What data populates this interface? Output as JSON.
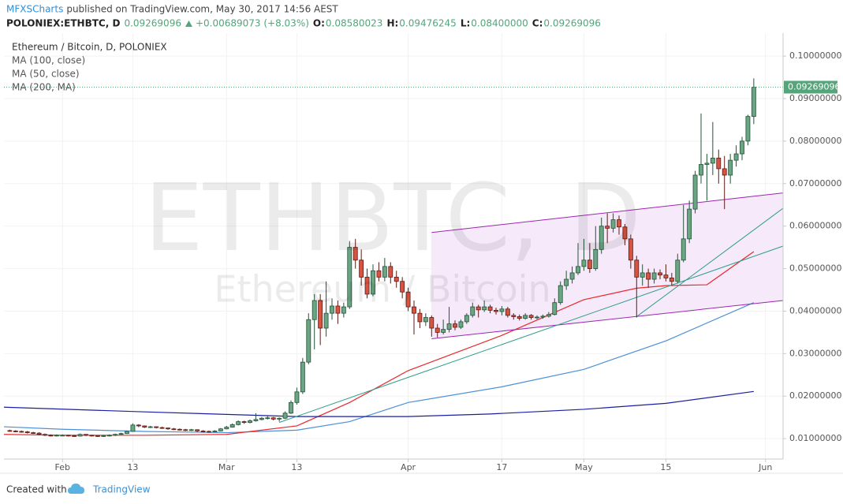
{
  "header": {
    "author": "MFXSCharts",
    "published": "published on TradingView.com, May 30, 2017 14:56 AEST",
    "symbol": "POLONIEX:ETHBTC, D",
    "price": "0.09269096",
    "change": "+0.00689073 (+8.03%)",
    "ohlc": [
      {
        "label": "O:",
        "value": "0.08580023"
      },
      {
        "label": "H:",
        "value": "0.09476245"
      },
      {
        "label": "L:",
        "value": "0.08400000"
      },
      {
        "label": "C:",
        "value": "0.09269096"
      }
    ]
  },
  "watermark": {
    "symbol": "ETHBTC, D",
    "name": "Ethereum / Bitcoin"
  },
  "footer": {
    "text": "Created with",
    "brand": "TradingView"
  },
  "chart_data": {
    "type": "candlestick",
    "title": "Ethereum / Bitcoin, D, POLONIEX",
    "up_color": "#6ba583",
    "down_color": "#d75442",
    "up_border": "#225437",
    "down_border": "#5b1a13",
    "x": [
      "01-23",
      "01-24",
      "01-25",
      "01-26",
      "01-27",
      "01-28",
      "01-29",
      "01-30",
      "01-31",
      "02-01",
      "02-02",
      "02-03",
      "02-04",
      "02-05",
      "02-06",
      "02-07",
      "02-08",
      "02-09",
      "02-10",
      "02-11",
      "02-12",
      "02-13",
      "02-14",
      "02-15",
      "02-16",
      "02-17",
      "02-18",
      "02-19",
      "02-20",
      "02-21",
      "02-22",
      "02-23",
      "02-24",
      "02-25",
      "02-26",
      "02-27",
      "02-28",
      "03-01",
      "03-02",
      "03-03",
      "03-04",
      "03-05",
      "03-06",
      "03-07",
      "03-08",
      "03-09",
      "03-10",
      "03-11",
      "03-12",
      "03-13",
      "03-14",
      "03-15",
      "03-16",
      "03-17",
      "03-18",
      "03-19",
      "03-20",
      "03-21",
      "03-22",
      "03-23",
      "03-24",
      "03-25",
      "03-26",
      "03-27",
      "03-28",
      "03-29",
      "03-30",
      "03-31",
      "04-01",
      "04-02",
      "04-03",
      "04-04",
      "04-05",
      "04-06",
      "04-07",
      "04-08",
      "04-09",
      "04-10",
      "04-11",
      "04-12",
      "04-13",
      "04-14",
      "04-15",
      "04-16",
      "04-17",
      "04-18",
      "04-19",
      "04-20",
      "04-21",
      "04-22",
      "04-23",
      "04-24",
      "04-25",
      "04-26",
      "04-27",
      "04-28",
      "04-29",
      "04-30",
      "05-01",
      "05-02",
      "05-03",
      "05-04",
      "05-05",
      "05-06",
      "05-07",
      "05-08",
      "05-09",
      "05-10",
      "05-11",
      "05-12",
      "05-13",
      "05-14",
      "05-15",
      "05-16",
      "05-17",
      "05-18",
      "05-19",
      "05-20",
      "05-21",
      "05-22",
      "05-23",
      "05-24",
      "05-25",
      "05-26",
      "05-27",
      "05-28",
      "05-29",
      "05-30"
    ],
    "open": [
      0.0119,
      0.0118,
      0.0117,
      0.0116,
      0.0114,
      0.0113,
      0.011,
      0.0108,
      0.0107,
      0.0108,
      0.0108,
      0.0107,
      0.0106,
      0.011,
      0.0108,
      0.0107,
      0.0106,
      0.0107,
      0.0108,
      0.011,
      0.0112,
      0.0117,
      0.0132,
      0.013,
      0.0127,
      0.0128,
      0.0126,
      0.0125,
      0.0123,
      0.0122,
      0.0121,
      0.012,
      0.0121,
      0.0118,
      0.0117,
      0.0116,
      0.0118,
      0.0123,
      0.0127,
      0.0133,
      0.014,
      0.0138,
      0.0142,
      0.0145,
      0.0148,
      0.0149,
      0.0146,
      0.0148,
      0.016,
      0.0185,
      0.021,
      0.028,
      0.038,
      0.0425,
      0.036,
      0.0395,
      0.0412,
      0.0395,
      0.041,
      0.055,
      0.052,
      0.048,
      0.044,
      0.0495,
      0.048,
      0.0505,
      0.048,
      0.047,
      0.0445,
      0.041,
      0.0395,
      0.0375,
      0.0385,
      0.036,
      0.035,
      0.0357,
      0.037,
      0.0362,
      0.0375,
      0.039,
      0.041,
      0.0403,
      0.041,
      0.0402,
      0.0399,
      0.0405,
      0.039,
      0.0387,
      0.0383,
      0.039,
      0.0385,
      0.0386,
      0.0388,
      0.0392,
      0.042,
      0.046,
      0.0475,
      0.049,
      0.0505,
      0.052,
      0.05,
      0.0545,
      0.06,
      0.0595,
      0.0615,
      0.0598,
      0.057,
      0.052,
      0.048,
      0.049,
      0.0475,
      0.049,
      0.0485,
      0.0478,
      0.047,
      0.052,
      0.057,
      0.064,
      0.072,
      0.0745,
      0.0748,
      0.076,
      0.0735,
      0.072,
      0.0755,
      0.077,
      0.08,
      0.08580023
    ],
    "high": [
      0.0121,
      0.012,
      0.0119,
      0.0118,
      0.0116,
      0.0115,
      0.0112,
      0.011,
      0.011,
      0.011,
      0.0109,
      0.0109,
      0.0112,
      0.0111,
      0.0109,
      0.0108,
      0.0109,
      0.011,
      0.0112,
      0.0114,
      0.0119,
      0.0136,
      0.0134,
      0.0131,
      0.013,
      0.0129,
      0.0128,
      0.0126,
      0.0125,
      0.0124,
      0.0123,
      0.0123,
      0.0122,
      0.012,
      0.0119,
      0.012,
      0.0125,
      0.013,
      0.0136,
      0.0143,
      0.0142,
      0.0145,
      0.016,
      0.0151,
      0.0153,
      0.0151,
      0.015,
      0.0164,
      0.019,
      0.022,
      0.029,
      0.0395,
      0.044,
      0.044,
      0.047,
      0.043,
      0.0425,
      0.042,
      0.0565,
      0.057,
      0.0545,
      0.05,
      0.051,
      0.0515,
      0.0525,
      0.0515,
      0.0495,
      0.048,
      0.0455,
      0.0425,
      0.0405,
      0.0395,
      0.039,
      0.037,
      0.038,
      0.041,
      0.0378,
      0.038,
      0.0395,
      0.042,
      0.0415,
      0.0425,
      0.0415,
      0.0408,
      0.0412,
      0.041,
      0.0395,
      0.0392,
      0.0395,
      0.0393,
      0.039,
      0.0392,
      0.0398,
      0.043,
      0.047,
      0.0495,
      0.0505,
      0.056,
      0.057,
      0.056,
      0.06,
      0.062,
      0.063,
      0.063,
      0.0625,
      0.0605,
      0.058,
      0.053,
      0.051,
      0.05,
      0.05,
      0.0498,
      0.051,
      0.049,
      0.0535,
      0.065,
      0.066,
      0.073,
      0.0865,
      0.077,
      0.0845,
      0.078,
      0.0765,
      0.077,
      0.079,
      0.081,
      0.0862,
      0.09476245
    ],
    "low": [
      0.0116,
      0.0115,
      0.0114,
      0.0112,
      0.0111,
      0.0108,
      0.0106,
      0.0105,
      0.0105,
      0.0106,
      0.0105,
      0.0104,
      0.0105,
      0.0106,
      0.0105,
      0.0104,
      0.0104,
      0.0105,
      0.0106,
      0.0109,
      0.0111,
      0.0116,
      0.0127,
      0.0125,
      0.0125,
      0.0124,
      0.0123,
      0.0121,
      0.012,
      0.0119,
      0.0118,
      0.0118,
      0.0116,
      0.0115,
      0.0114,
      0.0115,
      0.0117,
      0.0122,
      0.0126,
      0.0131,
      0.0135,
      0.0136,
      0.014,
      0.0143,
      0.0145,
      0.0143,
      0.014,
      0.0146,
      0.0158,
      0.018,
      0.0205,
      0.0275,
      0.031,
      0.032,
      0.034,
      0.038,
      0.037,
      0.0385,
      0.0405,
      0.05,
      0.046,
      0.043,
      0.0435,
      0.047,
      0.047,
      0.0465,
      0.0455,
      0.043,
      0.04,
      0.0345,
      0.036,
      0.0365,
      0.034,
      0.0338,
      0.0345,
      0.035,
      0.0355,
      0.0358,
      0.037,
      0.0385,
      0.0385,
      0.0398,
      0.0395,
      0.0392,
      0.039,
      0.0385,
      0.038,
      0.0378,
      0.038,
      0.038,
      0.0381,
      0.0382,
      0.0385,
      0.039,
      0.0415,
      0.045,
      0.0465,
      0.0485,
      0.0495,
      0.049,
      0.0495,
      0.0535,
      0.056,
      0.0585,
      0.058,
      0.0555,
      0.05,
      0.0385,
      0.046,
      0.0455,
      0.0465,
      0.0475,
      0.047,
      0.046,
      0.0465,
      0.0515,
      0.056,
      0.063,
      0.07,
      0.066,
      0.072,
      0.07,
      0.064,
      0.07,
      0.074,
      0.0755,
      0.079,
      0.084
    ],
    "close": [
      0.0118,
      0.0117,
      0.0116,
      0.0114,
      0.0113,
      0.011,
      0.0108,
      0.0107,
      0.0108,
      0.0108,
      0.0107,
      0.0106,
      0.011,
      0.0108,
      0.0107,
      0.0106,
      0.0107,
      0.0108,
      0.011,
      0.0112,
      0.0117,
      0.0132,
      0.013,
      0.0127,
      0.0128,
      0.0126,
      0.0125,
      0.0123,
      0.0122,
      0.0121,
      0.012,
      0.0121,
      0.0118,
      0.0117,
      0.0116,
      0.0118,
      0.0123,
      0.0127,
      0.0133,
      0.014,
      0.0138,
      0.0142,
      0.0145,
      0.0148,
      0.0149,
      0.0146,
      0.0148,
      0.016,
      0.0185,
      0.021,
      0.028,
      0.038,
      0.0425,
      0.036,
      0.0395,
      0.0412,
      0.0395,
      0.041,
      0.055,
      0.052,
      0.048,
      0.044,
      0.0495,
      0.048,
      0.0505,
      0.048,
      0.047,
      0.0445,
      0.041,
      0.0395,
      0.0375,
      0.0385,
      0.036,
      0.035,
      0.0357,
      0.037,
      0.0362,
      0.0375,
      0.039,
      0.041,
      0.0403,
      0.041,
      0.0402,
      0.0399,
      0.0405,
      0.039,
      0.0387,
      0.0383,
      0.039,
      0.0385,
      0.0386,
      0.0388,
      0.0392,
      0.042,
      0.046,
      0.0475,
      0.049,
      0.0505,
      0.052,
      0.05,
      0.0545,
      0.06,
      0.0595,
      0.0615,
      0.0598,
      0.057,
      0.052,
      0.048,
      0.049,
      0.0475,
      0.049,
      0.0485,
      0.0478,
      0.047,
      0.052,
      0.057,
      0.064,
      0.072,
      0.0745,
      0.0748,
      0.076,
      0.0735,
      0.072,
      0.0755,
      0.077,
      0.08,
      0.0858,
      0.09269096
    ],
    "ma_series": [
      {
        "name": "MA (100, close)",
        "color": "#4a90d9",
        "x": [
          "01-22",
          "02-01",
          "02-15",
          "03-01",
          "03-13",
          "03-22",
          "04-01",
          "04-17",
          "05-01",
          "05-15",
          "05-30"
        ],
        "values": [
          0.0128,
          0.0122,
          0.0117,
          0.0114,
          0.012,
          0.014,
          0.0185,
          0.0222,
          0.0263,
          0.033,
          0.042
        ]
      },
      {
        "name": "MA (50, close)",
        "color": "#e8282b",
        "x": [
          "01-22",
          "02-01",
          "02-15",
          "03-01",
          "03-13",
          "03-22",
          "04-01",
          "04-17",
          "05-01",
          "05-10",
          "05-15",
          "05-22",
          "05-30"
        ],
        "values": [
          0.011,
          0.0108,
          0.0108,
          0.011,
          0.013,
          0.0185,
          0.026,
          0.0343,
          0.0427,
          0.0454,
          0.046,
          0.0462,
          0.054
        ]
      },
      {
        "name": "MA (200, MA)",
        "color": "#1a1fa0",
        "x": [
          "01-22",
          "02-15",
          "03-13",
          "04-01",
          "04-15",
          "05-01",
          "05-15",
          "05-30"
        ],
        "values": [
          0.0174,
          0.0163,
          0.0152,
          0.0152,
          0.0158,
          0.0169,
          0.0183,
          0.0211
        ]
      }
    ],
    "drawings": [
      {
        "x": [
          "04-05",
          "06-04"
        ],
        "y": [
          0.0585,
          0.0678
        ],
        "color": "#9c27b0"
      },
      {
        "x": [
          "04-05",
          "06-04"
        ],
        "y": [
          0.0335,
          0.0425
        ],
        "color": "#9c27b0"
      },
      {
        "x": [
          "03-10",
          "06-04"
        ],
        "y": [
          0.0138,
          0.0553
        ],
        "color": "#2e9e8a"
      },
      {
        "x": [
          "05-10",
          "06-04"
        ],
        "y": [
          0.0387,
          0.0642
        ],
        "color": "#2e9e8a"
      }
    ],
    "channel_fill": "#f6eafa",
    "price_color": "#53a57a",
    "xlim": [
      "01-22",
      "06-04"
    ],
    "xticks": [
      {
        "value": "02-01",
        "label": "Feb"
      },
      {
        "value": "02-13",
        "label": "13"
      },
      {
        "value": "03-01",
        "label": "Mar"
      },
      {
        "value": "03-13",
        "label": "13"
      },
      {
        "value": "04-01",
        "label": "Apr"
      },
      {
        "value": "04-17",
        "label": "17"
      },
      {
        "value": "05-01",
        "label": "May"
      },
      {
        "value": "05-15",
        "label": "15"
      },
      {
        "value": "06-01",
        "label": "Jun"
      }
    ],
    "ylim": [
      0.0052,
      0.1054
    ],
    "yticks": [
      {
        "value": 0.01,
        "label": "0.01000000"
      },
      {
        "value": 0.02,
        "label": "0.02000000"
      },
      {
        "value": 0.03,
        "label": "0.03000000"
      },
      {
        "value": 0.04,
        "label": "0.04000000"
      },
      {
        "value": 0.05,
        "label": "0.05000000"
      },
      {
        "value": 0.06,
        "label": "0.06000000"
      },
      {
        "value": 0.07,
        "label": "0.07000000"
      },
      {
        "value": 0.08,
        "label": "0.08000000"
      },
      {
        "value": 0.09,
        "label": "0.09000000"
      },
      {
        "value": 0.1,
        "label": "0.10000000"
      }
    ],
    "grid": true
  }
}
